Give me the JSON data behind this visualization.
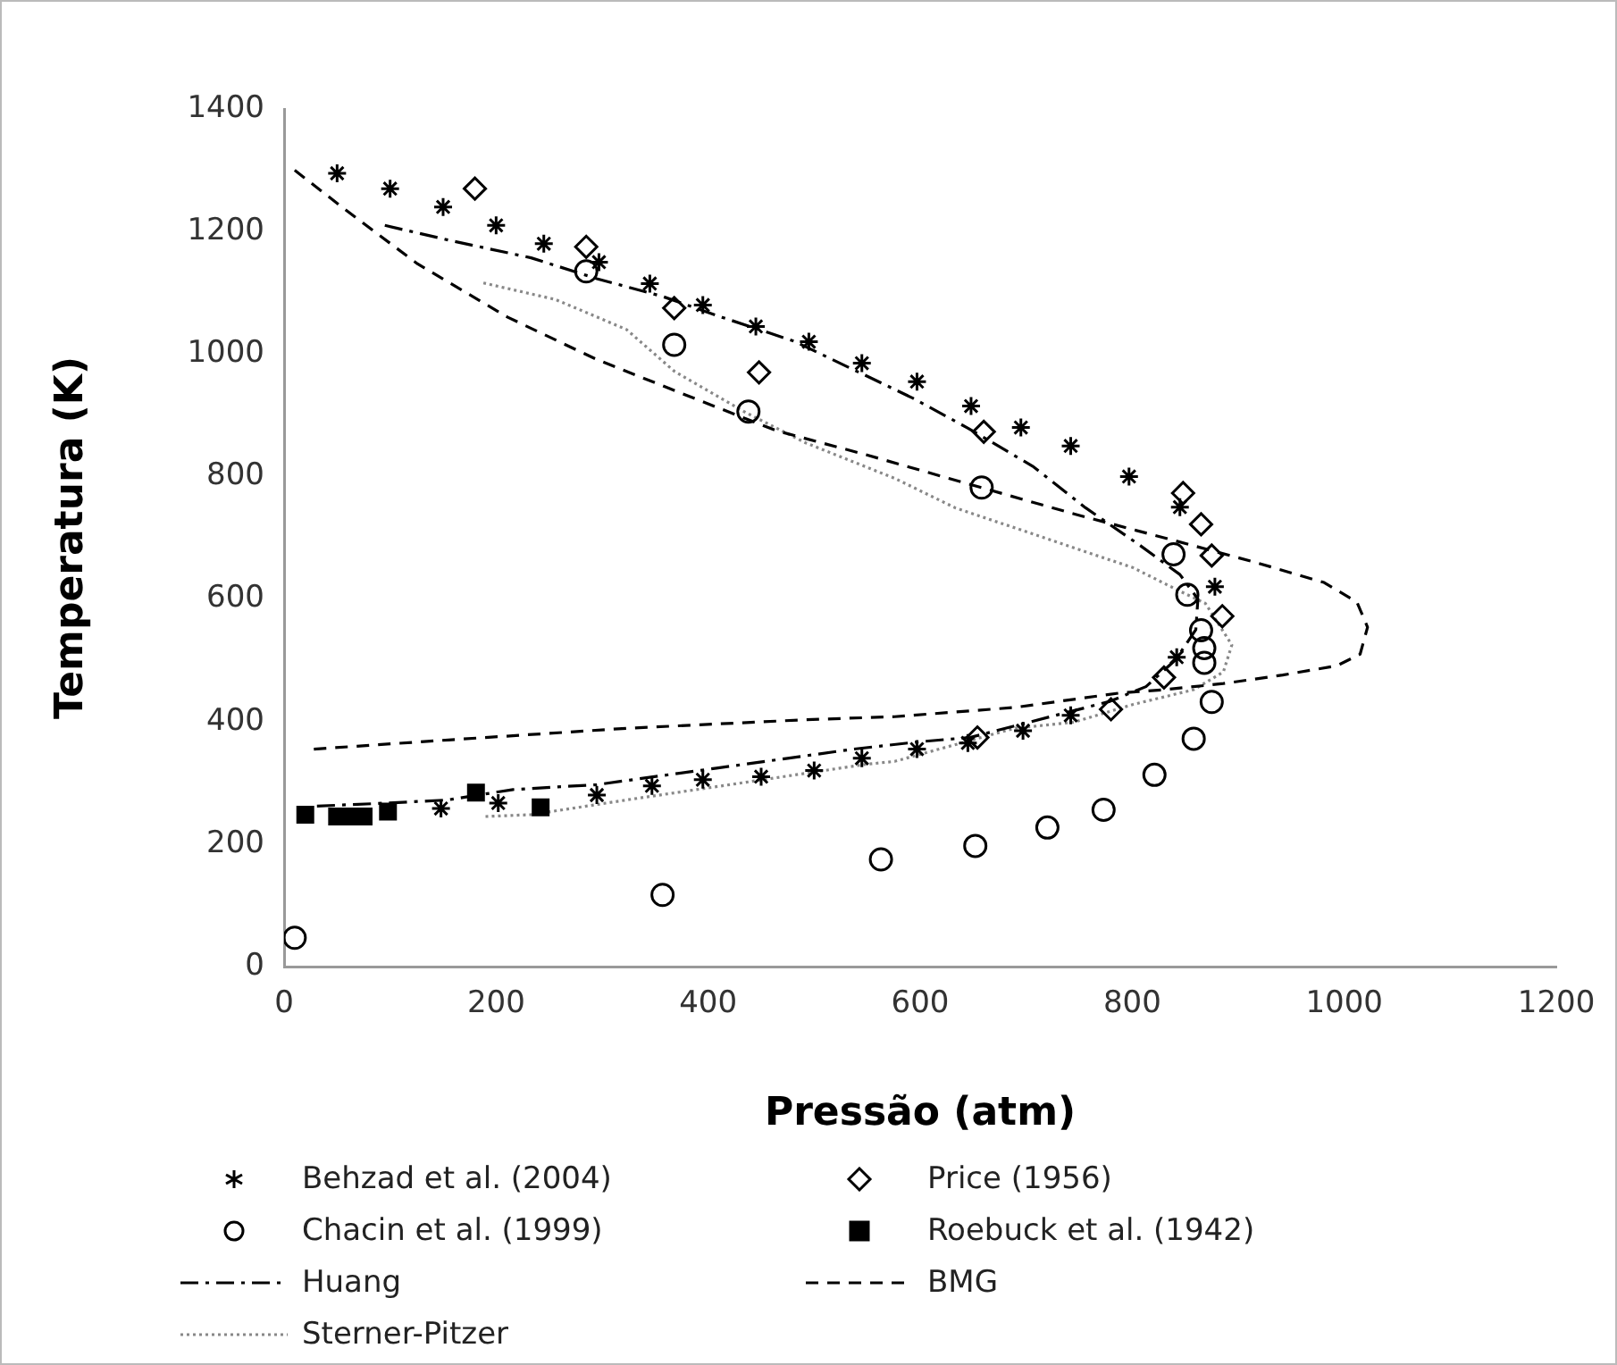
{
  "chart_data": {
    "type": "scatter",
    "xlabel": "Pressão (atm)",
    "ylabel": "Temperatura (K)",
    "xlim": [
      0,
      1200
    ],
    "xticks": [
      0,
      200,
      400,
      600,
      800,
      1000,
      1200
    ],
    "ylim": [
      0,
      1400
    ],
    "yticks": [
      0,
      200,
      400,
      600,
      800,
      1000,
      1200,
      1400
    ],
    "grid": false,
    "legend": "bottom",
    "series": [
      {
        "name": "Behzad et al. (2004)",
        "type": "scatter",
        "marker": "cross",
        "color": "#000000",
        "x": [
          50,
          100,
          150,
          200,
          245,
          297,
          345,
          395,
          445,
          495,
          545,
          597,
          648,
          695,
          742,
          797,
          845,
          878,
          842,
          742,
          697,
          645,
          597,
          545,
          500,
          450,
          395,
          347,
          295,
          202,
          148
        ],
        "values": [
          1295,
          1270,
          1240,
          1210,
          1180,
          1150,
          1115,
          1080,
          1045,
          1020,
          985,
          955,
          915,
          880,
          850,
          800,
          750,
          620,
          505,
          410,
          385,
          365,
          355,
          340,
          320,
          310,
          305,
          295,
          280,
          267,
          258
        ]
      },
      {
        "name": "Price (1956)",
        "type": "scatter",
        "marker": "diamond",
        "color": "#000000",
        "x": [
          180,
          285,
          368,
          448,
          660,
          848,
          865,
          875,
          885,
          830,
          780,
          654
        ],
        "values": [
          1270,
          1175,
          1075,
          970,
          873,
          773,
          722,
          671,
          572,
          472,
          420,
          374
        ]
      },
      {
        "name": "Chacin et al. (1999)",
        "type": "scatter",
        "marker": "circle",
        "color": "#000000",
        "x": [
          285,
          368,
          438,
          658,
          839,
          852,
          865,
          868,
          868,
          875,
          858,
          821,
          773,
          720,
          652,
          563,
          357,
          10
        ],
        "values": [
          1135,
          1015,
          906,
          782,
          673,
          607,
          549,
          520,
          496,
          432,
          372,
          313,
          256,
          227,
          197,
          175,
          117,
          47
        ]
      },
      {
        "name": "Roebuck et al. (1942)",
        "type": "scatter",
        "marker": "square",
        "color": "#000000",
        "x": [
          20,
          50,
          63,
          75,
          98,
          181,
          242
        ],
        "values": [
          248,
          245,
          245,
          245,
          253,
          284,
          260
        ]
      },
      {
        "name": "Huang",
        "type": "line",
        "line_style": "dashdot",
        "color": "#000000",
        "x": [
          95,
          155,
          233,
          295,
          357,
          413,
          481,
          534,
          593,
          644,
          706,
          756,
          807,
          845,
          862,
          860,
          841,
          813,
          779,
          647,
          599,
          537,
          475,
          408,
          295,
          216,
          154,
          98,
          31
        ],
        "values": [
          1210,
          1186,
          1157,
          1123,
          1094,
          1060,
          1021,
          977,
          928,
          880,
          817,
          749,
          688,
          640,
          600,
          550,
          501,
          457,
          433,
          374,
          367,
          355,
          340,
          324,
          297,
          289,
          272,
          267,
          262
        ]
      },
      {
        "name": "BMG",
        "type": "line",
        "line_style": "dashed",
        "color": "#000000",
        "x": [
          10,
          59,
          126,
          211,
          295,
          379,
          464,
          548,
          627,
          745,
          830,
          914,
          981,
          1012,
          1022,
          1015,
          993,
          942,
          886,
          830,
          790,
          689,
          576,
          492,
          323,
          155,
          28
        ],
        "values": [
          1300,
          1234,
          1147,
          1060,
          991,
          933,
          875,
          836,
          797,
          739,
          700,
          661,
          627,
          595,
          554,
          510,
          491,
          476,
          462,
          452,
          447,
          423,
          408,
          403,
          389,
          370,
          355
        ]
      },
      {
        "name": "Sterner-Pitzer",
        "type": "line",
        "line_style": "dotted",
        "color": "#888888",
        "x": [
          188,
          256,
          323,
          368,
          436,
          492,
          576,
          633,
          717,
          801,
          846,
          869,
          894,
          886,
          858,
          801,
          745,
          689,
          576,
          548,
          436,
          323,
          233,
          190
        ],
        "values": [
          1116,
          1089,
          1040,
          972,
          904,
          855,
          797,
          749,
          700,
          651,
          612,
          593,
          525,
          481,
          452,
          428,
          399,
          389,
          335,
          330,
          301,
          272,
          248,
          245
        ]
      }
    ]
  }
}
